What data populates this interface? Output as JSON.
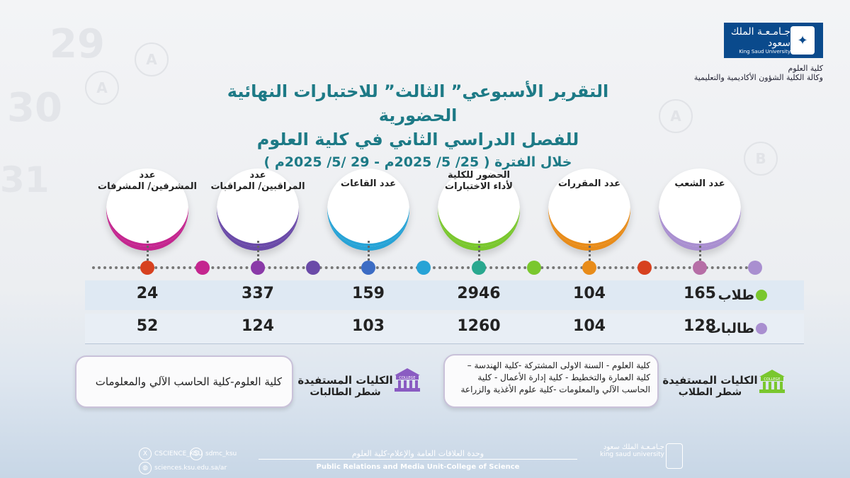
{
  "header": {
    "university_ar": "جـامـعـة الملك سعود",
    "university_en": "King Saud University",
    "college": "كلية العلوم",
    "agency": "وكالة الكلية الشؤون الأكاديمية والتعليمية"
  },
  "title": {
    "line1": "التقرير الأسبوعي” الثالث” للاختبارات النهائية الحضورية",
    "line2": "للفصل الدراسي الثاني في كلية العلوم",
    "line3": "خلال الفترة ( 25/ 5/ 2025م - 29 /5/ 2025م )"
  },
  "metrics": [
    {
      "label_l1": "عدد الشعب",
      "label_l2": "",
      "color": "#a98fd0",
      "male": "165",
      "female": "128"
    },
    {
      "label_l1": "عدد المقررات",
      "label_l2": "",
      "color": "#e88c1a",
      "male": "104",
      "female": "104"
    },
    {
      "label_l1": "الحضور للكلية",
      "label_l2": "لأداء الاختبارات",
      "color": "#7ac72e",
      "male": "2946",
      "female": "1260"
    },
    {
      "label_l1": "عدد القاعات",
      "label_l2": "",
      "color": "#27a3d6",
      "male": "159",
      "female": "103"
    },
    {
      "label_l1": "عدد",
      "label_l2": "المراقبين/ المراقبات",
      "color": "#6a4aa8",
      "male": "337",
      "female": "124"
    },
    {
      "label_l1": "عدد",
      "label_l2": "المشرفين/ المشرفات",
      "color": "#c4268f",
      "male": "24",
      "female": "52"
    }
  ],
  "rows": {
    "male_label": "طلاب",
    "female_label": "طالبات",
    "male_color": "#7ac72e",
    "female_color": "#a98fd0"
  },
  "timeline_dots": [
    "#a98fd0",
    "#b66ea6",
    "#d7411f",
    "#e88c1a",
    "#7ac72e",
    "#2aa88f",
    "#27a3d6",
    "#3c6cc4",
    "#6a4aa8",
    "#8a3aa8",
    "#c4268f",
    "#d7411f"
  ],
  "beneficiaries": {
    "students_title": "الكليات المستفيدة",
    "students_sub": "شطر الطلاب",
    "students_text": "كلية العلوم - السنة الاولى المشتركة -كلية الهندسة – كلية العمارة والتخطيط - كلية إدارة الأعمال - كلية الحاسب الآلي والمعلومات -كلية علوم الأغذية والزراعة",
    "female_title": "الكليات المستفيدة",
    "female_sub": "شطر الطالبات",
    "female_text": "كلية العلوم-كلية الحاسب الآلي والمعلومات",
    "icon_label": "COLLEGE"
  },
  "footer": {
    "unit_ar": "وحدة العلاقات العامة والإعلام-كلية العلوم",
    "unit_en": "Public Relations and Media Unit-College of Science",
    "x_handle": "CSCIENCE_KSU",
    "snap_handle": "sdmc_ksu",
    "website": "sciences.ksu.edu.sa/ar",
    "logo_ar": "جـامـعـة الملك سعود",
    "logo_en": "king saud university"
  }
}
